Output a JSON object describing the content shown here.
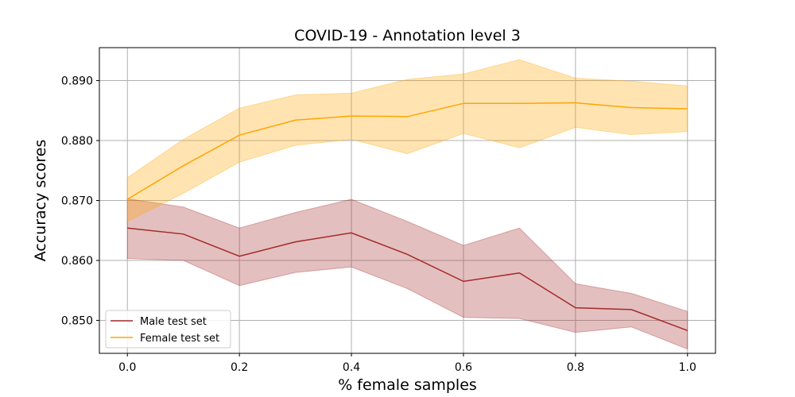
{
  "chart_data": {
    "type": "line",
    "title": "COVID-19 - Annotation level 3",
    "xlabel": "% female samples",
    "ylabel": "Accuracy scores",
    "xlim": [
      -0.05,
      1.05
    ],
    "ylim": [
      0.8445,
      0.8955
    ],
    "x_ticks": [
      0.0,
      0.2,
      0.4,
      0.6,
      0.8,
      1.0
    ],
    "x_tick_labels": [
      "0.0",
      "0.2",
      "0.4",
      "0.6",
      "0.8",
      "1.0"
    ],
    "y_ticks": [
      0.85,
      0.86,
      0.87,
      0.88,
      0.89
    ],
    "y_tick_labels": [
      "0.850",
      "0.860",
      "0.870",
      "0.880",
      "0.890"
    ],
    "grid": true,
    "legend_position": "lower-left",
    "x": [
      0.0,
      0.1,
      0.2,
      0.3,
      0.4,
      0.5,
      0.6,
      0.7,
      0.8,
      0.9,
      1.0
    ],
    "series": [
      {
        "name": "Male test set",
        "color": "#a52a2a",
        "values": [
          0.8654,
          0.8644,
          0.8607,
          0.8631,
          0.8646,
          0.861,
          0.8565,
          0.8579,
          0.8521,
          0.8518,
          0.8483
        ],
        "upper": [
          0.8703,
          0.8689,
          0.8654,
          0.868,
          0.8702,
          0.8665,
          0.8625,
          0.8654,
          0.8561,
          0.8545,
          0.8515
        ],
        "lower": [
          0.8603,
          0.86,
          0.8558,
          0.858,
          0.8589,
          0.8553,
          0.8505,
          0.8503,
          0.848,
          0.8489,
          0.8452
        ]
      },
      {
        "name": "Female test set",
        "color": "#ffa500",
        "values": [
          0.8702,
          0.8758,
          0.8809,
          0.8834,
          0.8841,
          0.884,
          0.8862,
          0.8862,
          0.8863,
          0.8855,
          0.8853
        ],
        "upper": [
          0.8738,
          0.8802,
          0.8854,
          0.8876,
          0.8879,
          0.8902,
          0.8911,
          0.8935,
          0.8904,
          0.8899,
          0.8891
        ],
        "lower": [
          0.8665,
          0.8712,
          0.8764,
          0.8792,
          0.8802,
          0.8778,
          0.8812,
          0.8788,
          0.8822,
          0.881,
          0.8815
        ]
      }
    ]
  }
}
